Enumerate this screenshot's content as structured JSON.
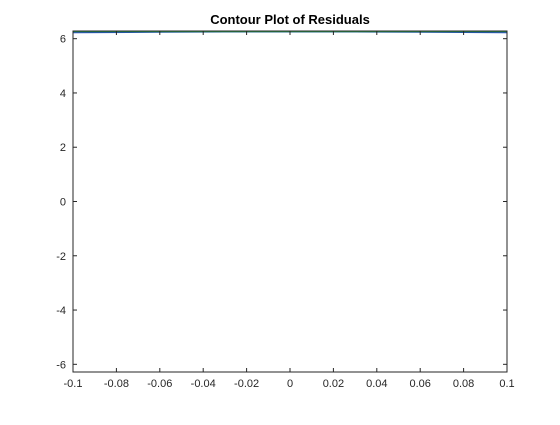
{
  "chart_data": {
    "type": "contour",
    "title": "Contour Plot of Residuals",
    "xlabel": "",
    "ylabel": "",
    "xlim": [
      -0.1,
      0.1
    ],
    "ylim": [
      -6.2832,
      6.2832
    ],
    "x_ticks": [
      -0.1,
      -0.08,
      -0.06,
      -0.04,
      -0.02,
      0,
      0.02,
      0.04,
      0.06,
      0.08,
      0.1
    ],
    "x_tick_labels": [
      "-0.1",
      "-0.08",
      "-0.06",
      "-0.04",
      "-0.02",
      "0",
      "0.02",
      "0.04",
      "0.06",
      "0.08",
      "0.1"
    ],
    "y_ticks": [
      -6,
      -4,
      -2,
      0,
      2,
      4,
      6
    ],
    "y_tick_labels": [
      "-6",
      "-4",
      "-2",
      "0",
      "2",
      "4",
      "6"
    ],
    "grid": false,
    "box": true,
    "contour_lines": [
      {
        "color": "#1f3fbf",
        "x": [
          -0.1,
          -0.06,
          -0.03,
          0,
          0.03,
          0.06,
          0.1
        ],
        "y": [
          6.22,
          6.24,
          6.25,
          6.25,
          6.25,
          6.24,
          6.22
        ]
      },
      {
        "color": "#c43a2b",
        "x": [
          -0.1,
          -0.05,
          0,
          0.05,
          0.1
        ],
        "y": [
          6.27,
          6.27,
          6.27,
          6.27,
          6.27
        ]
      },
      {
        "color": "#2a9a4a",
        "x": [
          -0.1,
          -0.05,
          0,
          0.05,
          0.1
        ],
        "y": [
          6.26,
          6.26,
          6.26,
          6.26,
          6.26
        ]
      }
    ]
  }
}
